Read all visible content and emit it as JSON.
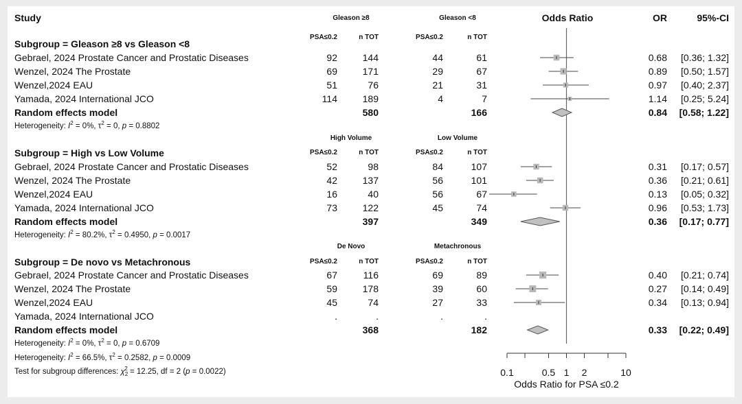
{
  "header": {
    "study": "Study",
    "odds_ratio": "Odds Ratio",
    "or": "OR",
    "ci": "95%-CI",
    "psa": "PSA≤0.2",
    "ntot": "n TOT"
  },
  "subgroups": [
    {
      "title": "Subgroup = Gleason ≥8 vs Gleason <8",
      "group1": "Gleason ≥8",
      "group2": "Gleason <8",
      "studies": [
        {
          "name": "Gebrael, 2024 Prostate Cancer and Prostatic Diseases",
          "e1": "92",
          "n1": "144",
          "e2": "44",
          "n2": "61",
          "or_text": "0.68",
          "ci_text": "[0.36; 1.32]"
        },
        {
          "name": "Wenzel, 2024 The Prostate",
          "e1": "69",
          "n1": "171",
          "e2": "29",
          "n2": "67",
          "or_text": "0.89",
          "ci_text": "[0.50; 1.57]"
        },
        {
          "name": "Wenzel,2024 EAU",
          "e1": "51",
          "n1": "76",
          "e2": "21",
          "n2": "31",
          "or_text": "0.97",
          "ci_text": "[0.40; 2.37]"
        },
        {
          "name": "Yamada, 2024 International JCO",
          "e1": "114",
          "n1": "189",
          "e2": "4",
          "n2": "7",
          "or_text": "1.14",
          "ci_text": "[0.25; 5.24]"
        }
      ],
      "model_label": "Random effects model",
      "total1": "580",
      "total2": "166",
      "model_or": "0.84",
      "model_ci": "[0.58; 1.22]",
      "het": {
        "i2": "0%",
        "tau2": "0",
        "p": "0.8802"
      }
    },
    {
      "title": "Subgroup = High vs Low Volume",
      "group1": "High Volume",
      "group2": "Low Volume",
      "studies": [
        {
          "name": "Gebrael, 2024 Prostate Cancer and Prostatic Diseases",
          "e1": "52",
          "n1": "98",
          "e2": "84",
          "n2": "107",
          "or_text": "0.31",
          "ci_text": "[0.17; 0.57]"
        },
        {
          "name": "Wenzel, 2024 The Prostate",
          "e1": "42",
          "n1": "137",
          "e2": "56",
          "n2": "101",
          "or_text": "0.36",
          "ci_text": "[0.21; 0.61]"
        },
        {
          "name": "Wenzel,2024 EAU",
          "e1": "16",
          "n1": "40",
          "e2": "56",
          "n2": "67",
          "or_text": "0.13",
          "ci_text": "[0.05; 0.32]"
        },
        {
          "name": "Yamada, 2024 International JCO",
          "e1": "73",
          "n1": "122",
          "e2": "45",
          "n2": "74",
          "or_text": "0.96",
          "ci_text": "[0.53; 1.73]"
        }
      ],
      "model_label": "Random effects model",
      "total1": "397",
      "total2": "349",
      "model_or": "0.36",
      "model_ci": "[0.17; 0.77]",
      "het": {
        "i2": "80.2%",
        "tau2": "0.4950",
        "p": "0.0017"
      }
    },
    {
      "title": "Subgroup = De novo vs Metachronous",
      "group1": "De Novo",
      "group2": "Metachronous",
      "studies": [
        {
          "name": "Gebrael, 2024 Prostate Cancer and Prostatic Diseases",
          "e1": "67",
          "n1": "116",
          "e2": "69",
          "n2": "89",
          "or_text": "0.40",
          "ci_text": "[0.21; 0.74]"
        },
        {
          "name": "Wenzel, 2024 The Prostate",
          "e1": "59",
          "n1": "178",
          "e2": "39",
          "n2": "60",
          "or_text": "0.27",
          "ci_text": "[0.14; 0.49]"
        },
        {
          "name": "Wenzel,2024 EAU",
          "e1": "45",
          "n1": "74",
          "e2": "27",
          "n2": "33",
          "or_text": "0.34",
          "ci_text": "[0.13; 0.94]"
        },
        {
          "name": "Yamada, 2024 International JCO",
          "e1": ".",
          "n1": ".",
          "e2": ".",
          "n2": ".",
          "or_text": "",
          "ci_text": ""
        }
      ],
      "model_label": "Random effects model",
      "total1": "368",
      "total2": "182",
      "model_or": "0.33",
      "model_ci": "[0.22; 0.49]",
      "het": {
        "i2": "0%",
        "tau2": "0",
        "p": "0.6709"
      }
    }
  ],
  "overall_het": {
    "i2": "66.5%",
    "tau2": "0.2582",
    "p": "0.0009"
  },
  "subgroup_test": {
    "chi2": "12.25",
    "df": "2",
    "p": "0.0022"
  },
  "chart_data": {
    "type": "forest",
    "title": "Odds Ratio",
    "xlabel": "Odds Ratio for PSA ≤0.2",
    "xscale": "log",
    "xlim": [
      0.1,
      10
    ],
    "xticks": [
      "0.1",
      "0.5",
      "1",
      "2",
      "10"
    ],
    "reference_line": 1,
    "subgroups": [
      {
        "name": "Gleason ≥8 vs Gleason <8",
        "studies": [
          {
            "or": 0.68,
            "lo": 0.36,
            "hi": 1.32,
            "weight": 0.28
          },
          {
            "or": 0.89,
            "lo": 0.5,
            "hi": 1.57,
            "weight": 0.33
          },
          {
            "or": 0.97,
            "lo": 0.4,
            "hi": 2.37,
            "weight": 0.17
          },
          {
            "or": 1.14,
            "lo": 0.25,
            "hi": 5.24,
            "weight": 0.06
          }
        ],
        "pooled": {
          "or": 0.84,
          "lo": 0.58,
          "hi": 1.22
        }
      },
      {
        "name": "High vs Low Volume",
        "studies": [
          {
            "or": 0.31,
            "lo": 0.17,
            "hi": 0.57,
            "weight": 0.26
          },
          {
            "or": 0.36,
            "lo": 0.21,
            "hi": 0.61,
            "weight": 0.28
          },
          {
            "or": 0.13,
            "lo": 0.05,
            "hi": 0.32,
            "weight": 0.2
          },
          {
            "or": 0.96,
            "lo": 0.53,
            "hi": 1.73,
            "weight": 0.26
          }
        ],
        "pooled": {
          "or": 0.36,
          "lo": 0.17,
          "hi": 0.77
        }
      },
      {
        "name": "De novo vs Metachronous",
        "studies": [
          {
            "or": 0.4,
            "lo": 0.21,
            "hi": 0.74,
            "weight": 0.4
          },
          {
            "or": 0.27,
            "lo": 0.14,
            "hi": 0.49,
            "weight": 0.38
          },
          {
            "or": 0.34,
            "lo": 0.13,
            "hi": 0.94,
            "weight": 0.22
          }
        ],
        "pooled": {
          "or": 0.33,
          "lo": 0.22,
          "hi": 0.49
        }
      }
    ]
  }
}
